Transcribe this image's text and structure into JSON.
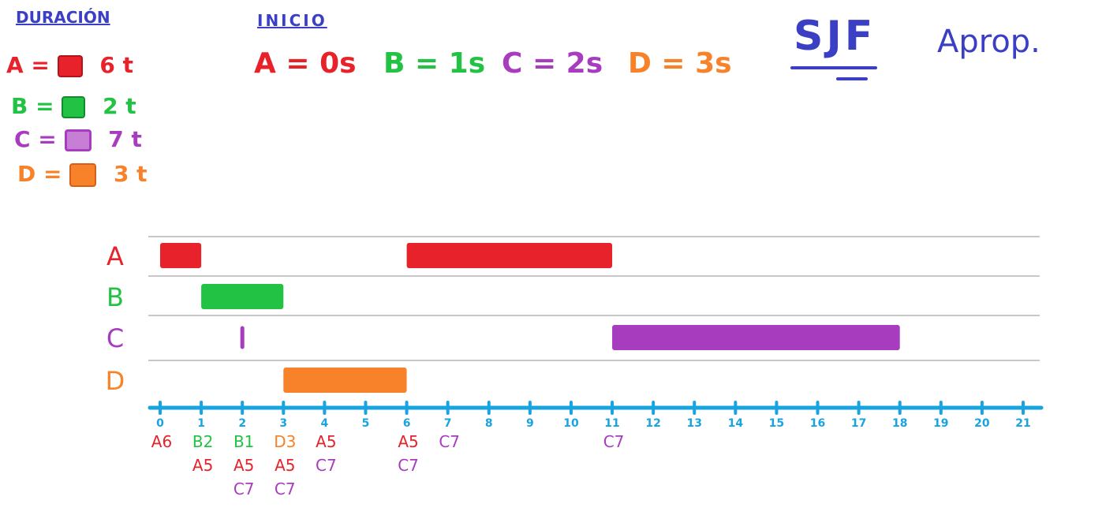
{
  "colors": {
    "A": "#e8222a",
    "B": "#22c244",
    "C": "#a83cbf",
    "D": "#f7822a",
    "title": "#3a3fc4",
    "axis": "#19a3e0",
    "grid": "#c8c8c8"
  },
  "header": {
    "duration_title": "DURACIÓN",
    "start_title": "INICIO",
    "algorithm": "SJF",
    "mode": "Aprop."
  },
  "durations": [
    {
      "proc": "A",
      "text": "A =",
      "value": "6 t"
    },
    {
      "proc": "B",
      "text": "B =",
      "value": "2 t"
    },
    {
      "proc": "C",
      "text": "C =",
      "value": "7 t"
    },
    {
      "proc": "D",
      "text": "D =",
      "value": "3 t"
    }
  ],
  "starts": [
    {
      "proc": "A",
      "text": "A = 0s"
    },
    {
      "proc": "B",
      "text": "B = 1s"
    },
    {
      "proc": "C",
      "text": "C = 2s"
    },
    {
      "proc": "D",
      "text": "D = 3s"
    }
  ],
  "chart_data": {
    "type": "gantt",
    "rows": [
      "A",
      "B",
      "C",
      "D"
    ],
    "x_ticks": [
      "0",
      "1",
      "2",
      "3",
      "4",
      "5",
      "6",
      "7",
      "8",
      "9",
      "10",
      "11",
      "12",
      "13",
      "14",
      "15",
      "16",
      "17",
      "18",
      "19",
      "20",
      "21"
    ],
    "xlim": [
      0,
      21
    ],
    "bars": [
      {
        "row": "A",
        "start": 0,
        "end": 1
      },
      {
        "row": "B",
        "start": 1,
        "end": 3
      },
      {
        "row": "D",
        "start": 3,
        "end": 6
      },
      {
        "row": "A",
        "start": 6,
        "end": 11
      },
      {
        "row": "C",
        "start": 11,
        "end": 18
      }
    ],
    "markers": [
      {
        "row": "C",
        "at": 2
      }
    ],
    "queue_annotations": [
      {
        "t": 0,
        "items": [
          {
            "proc": "A",
            "label": "A6"
          }
        ]
      },
      {
        "t": 1,
        "items": [
          {
            "proc": "B",
            "label": "B2"
          },
          {
            "proc": "A",
            "label": "A5"
          }
        ]
      },
      {
        "t": 2,
        "items": [
          {
            "proc": "B",
            "label": "B1"
          },
          {
            "proc": "A",
            "label": "A5"
          },
          {
            "proc": "C",
            "label": "C7"
          }
        ]
      },
      {
        "t": 3,
        "items": [
          {
            "proc": "D",
            "label": "D3"
          },
          {
            "proc": "A",
            "label": "A5"
          },
          {
            "proc": "C",
            "label": "C7"
          }
        ]
      },
      {
        "t": 4,
        "items": [
          {
            "proc": "A",
            "label": "A5"
          },
          {
            "proc": "C",
            "label": "C7"
          }
        ]
      },
      {
        "t": 6,
        "items": [
          {
            "proc": "A",
            "label": "A5"
          },
          {
            "proc": "C",
            "label": "C7"
          }
        ]
      },
      {
        "t": 7,
        "items": [
          {
            "proc": "C",
            "label": "C7"
          }
        ]
      },
      {
        "t": 11,
        "items": [
          {
            "proc": "C",
            "label": "C7"
          }
        ]
      }
    ]
  }
}
